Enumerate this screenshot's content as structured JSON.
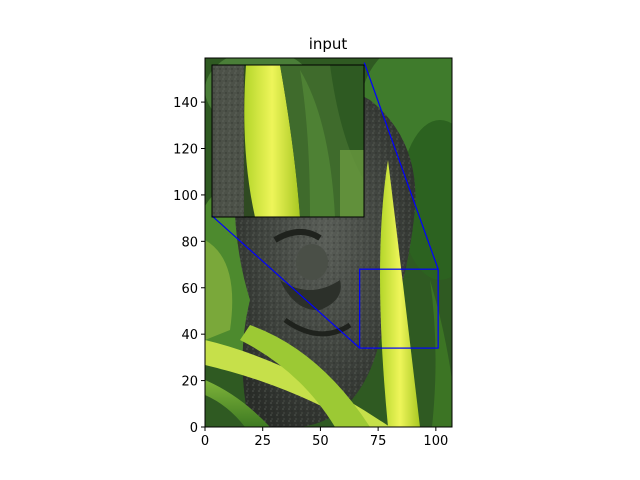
{
  "chart_data": {
    "type": "image",
    "title": "input",
    "xlabel": "",
    "ylabel": "",
    "xlim": [
      0,
      107
    ],
    "ylim": [
      0,
      159
    ],
    "xticks": [
      0,
      25,
      50,
      75,
      100
    ],
    "yticks": [
      0,
      20,
      40,
      60,
      80,
      100,
      120,
      140
    ],
    "grid": false,
    "image_description": "Close-up photo of a carved stone face (tiki/moai-style statue) surrounded by green tropical leaves, with a bright yellow-green leaf in front.",
    "zoom_region": {
      "x": [
        67,
        101
      ],
      "y": [
        34,
        68
      ]
    },
    "inset": {
      "x": [
        3,
        69
      ],
      "y": [
        91,
        157
      ],
      "description": "Magnified view of the zoom region showing a bright yellow-green leaf blade."
    },
    "connector_color": "#0000ff"
  }
}
